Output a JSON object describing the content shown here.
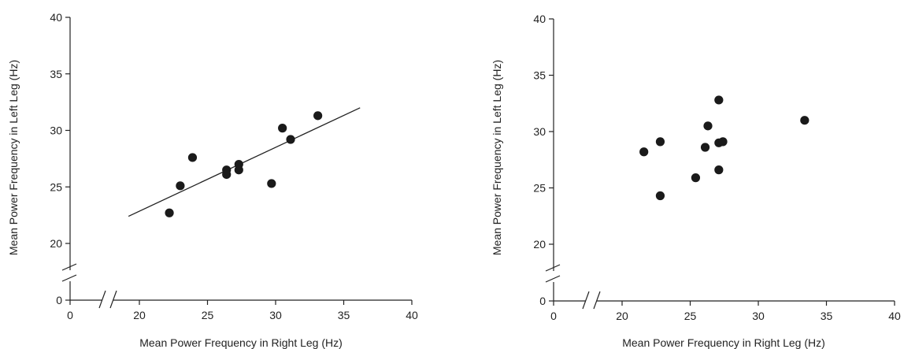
{
  "chart_data": [
    {
      "type": "scatter",
      "title": "",
      "xlabel": "Mean Power Frequency in Right Leg (Hz)",
      "ylabel": "Mean Power Frequency in Left Leg (Hz)",
      "x_ticks": [
        0,
        20,
        25,
        30,
        35,
        40
      ],
      "y_ticks": [
        0,
        20,
        25,
        30,
        35,
        40
      ],
      "xlim": [
        0,
        40
      ],
      "ylim": [
        0,
        40
      ],
      "axis_break": true,
      "grid": false,
      "series": [
        {
          "points": [
            {
              "x": 22.2,
              "y": 22.7
            },
            {
              "x": 23.0,
              "y": 25.1
            },
            {
              "x": 23.9,
              "y": 27.6
            },
            {
              "x": 26.4,
              "y": 26.5
            },
            {
              "x": 26.4,
              "y": 26.1
            },
            {
              "x": 27.3,
              "y": 27.0
            },
            {
              "x": 27.3,
              "y": 26.5
            },
            {
              "x": 29.7,
              "y": 25.3
            },
            {
              "x": 30.5,
              "y": 30.2
            },
            {
              "x": 31.1,
              "y": 29.2
            },
            {
              "x": 33.1,
              "y": 31.3
            }
          ]
        }
      ],
      "trend_line": {
        "x_start": 19.2,
        "y_start": 22.4,
        "x_end": 36.2,
        "y_end": 32.0
      }
    },
    {
      "type": "scatter",
      "title": "",
      "xlabel": "Mean Power Frequency in Right Leg (Hz)",
      "ylabel": "Mean Power Frequency in Left Leg (Hz)",
      "x_ticks": [
        0,
        20,
        25,
        30,
        35,
        40
      ],
      "y_ticks": [
        0,
        20,
        25,
        30,
        35,
        40
      ],
      "xlim": [
        0,
        40
      ],
      "ylim": [
        0,
        40
      ],
      "axis_break": true,
      "grid": false,
      "series": [
        {
          "points": [
            {
              "x": 21.6,
              "y": 28.2
            },
            {
              "x": 22.8,
              "y": 29.1
            },
            {
              "x": 22.8,
              "y": 24.3
            },
            {
              "x": 25.4,
              "y": 25.9
            },
            {
              "x": 26.1,
              "y": 28.6
            },
            {
              "x": 26.3,
              "y": 30.5
            },
            {
              "x": 27.1,
              "y": 32.8
            },
            {
              "x": 27.1,
              "y": 29.0
            },
            {
              "x": 27.4,
              "y": 29.1
            },
            {
              "x": 27.1,
              "y": 26.6
            },
            {
              "x": 33.4,
              "y": 31.0
            }
          ]
        }
      ]
    }
  ]
}
